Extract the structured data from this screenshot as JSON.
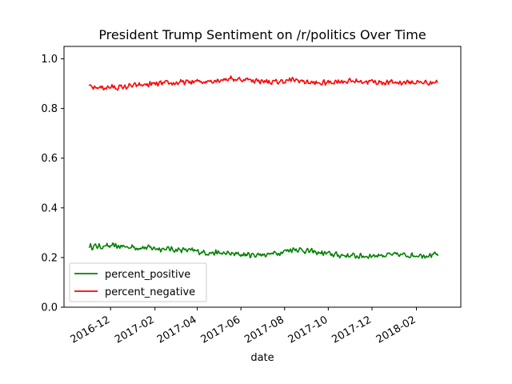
{
  "chart_data": {
    "type": "line",
    "title": "President Trump Sentiment on /r/politics Over Time",
    "xlabel": "date",
    "ylabel": "",
    "x_start": "2016-11-01",
    "x_end": "2018-03-03",
    "xlim": [
      "2016-09-27",
      "2018-04-04"
    ],
    "ylim": [
      0,
      1.05
    ],
    "x_tick_labels": [
      "2016-12",
      "2017-02",
      "2017-04",
      "2017-06",
      "2017-08",
      "2017-10",
      "2017-12",
      "2018-02"
    ],
    "y_tick_labels": [
      "0.0",
      "0.2",
      "0.4",
      "0.6",
      "0.8",
      "1.0"
    ],
    "legend_location": "lower-left",
    "grid": false,
    "series": [
      {
        "name": "percent_positive",
        "color": "#008000",
        "values_by_month": [
          [
            "2016-11",
            0.245
          ],
          [
            "2016-12",
            0.245
          ],
          [
            "2017-01",
            0.24
          ],
          [
            "2017-02",
            0.235
          ],
          [
            "2017-03",
            0.23
          ],
          [
            "2017-04",
            0.22
          ],
          [
            "2017-05",
            0.215
          ],
          [
            "2017-06",
            0.21
          ],
          [
            "2017-07",
            0.215
          ],
          [
            "2017-08",
            0.235
          ],
          [
            "2017-09",
            0.22
          ],
          [
            "2017-10",
            0.21
          ],
          [
            "2017-11",
            0.205
          ],
          [
            "2017-12",
            0.21
          ],
          [
            "2018-01",
            0.21
          ],
          [
            "2018-02",
            0.21
          ]
        ]
      },
      {
        "name": "percent_negative",
        "color": "#ff0000",
        "values_by_month": [
          [
            "2016-11",
            0.885
          ],
          [
            "2016-12",
            0.885
          ],
          [
            "2017-01",
            0.895
          ],
          [
            "2017-02",
            0.9
          ],
          [
            "2017-03",
            0.905
          ],
          [
            "2017-04",
            0.91
          ],
          [
            "2017-05",
            0.92
          ],
          [
            "2017-06",
            0.915
          ],
          [
            "2017-07",
            0.905
          ],
          [
            "2017-08",
            0.915
          ],
          [
            "2017-09",
            0.9
          ],
          [
            "2017-10",
            0.91
          ],
          [
            "2017-11",
            0.91
          ],
          [
            "2017-12",
            0.905
          ],
          [
            "2018-01",
            0.905
          ],
          [
            "2018-02",
            0.905
          ]
        ]
      }
    ]
  }
}
